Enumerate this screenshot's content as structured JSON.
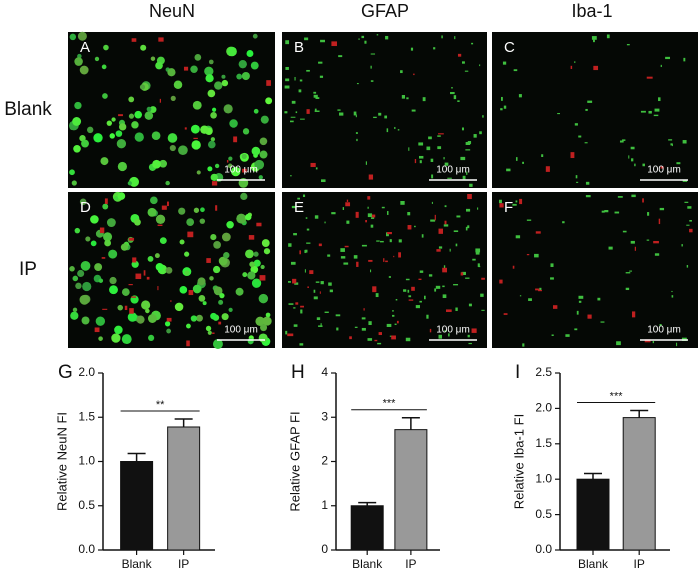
{
  "column_headers": [
    "NeuN",
    "GFAP",
    "Iba-1"
  ],
  "row_labels": [
    "Blank",
    "IP"
  ],
  "panels": [
    {
      "letter": "A",
      "scale_bar": "100 μm"
    },
    {
      "letter": "B",
      "scale_bar": "100 μm"
    },
    {
      "letter": "C",
      "scale_bar": "100 μm"
    },
    {
      "letter": "D",
      "scale_bar": "100 μm"
    },
    {
      "letter": "E",
      "scale_bar": "100 μm"
    },
    {
      "letter": "F",
      "scale_bar": "100 μm"
    }
  ],
  "chart_data": [
    {
      "type": "bar",
      "panel_label": "G",
      "ylabel": "Relative NeuN FI",
      "categories": [
        "Blank",
        "IP"
      ],
      "values": [
        1.0,
        1.39
      ],
      "errors": [
        0.09,
        0.09
      ],
      "colors": [
        "#111111",
        "#999999"
      ],
      "significance": "**",
      "ylim": [
        0,
        2
      ],
      "yticks": [
        {
          "value": 0,
          "label": "0.0"
        },
        {
          "value": 0.5,
          "label": "0.5"
        },
        {
          "value": 1,
          "label": "1.0"
        },
        {
          "value": 1.5,
          "label": "1.5"
        },
        {
          "value": 2,
          "label": "2.0"
        }
      ]
    },
    {
      "type": "bar",
      "panel_label": "H",
      "ylabel": "Relative GFAP FI",
      "categories": [
        "Blank",
        "IP"
      ],
      "values": [
        1.0,
        2.72
      ],
      "errors": [
        0.07,
        0.27
      ],
      "colors": [
        "#111111",
        "#999999"
      ],
      "significance": "***",
      "ylim": [
        0,
        4
      ],
      "yticks": [
        0,
        1,
        2,
        3,
        4
      ]
    },
    {
      "type": "bar",
      "panel_label": "I",
      "ylabel": "Relative Iba-1 FI",
      "categories": [
        "Blank",
        "IP"
      ],
      "values": [
        1.0,
        1.87
      ],
      "errors": [
        0.08,
        0.1
      ],
      "colors": [
        "#111111",
        "#999999"
      ],
      "significance": "***",
      "ylim": [
        0,
        2.5
      ],
      "yticks": [
        {
          "value": 0,
          "label": "0.0"
        },
        {
          "value": 0.5,
          "label": "0.5"
        },
        {
          "value": 1,
          "label": "1.0"
        },
        {
          "value": 1.5,
          "label": "1.5"
        },
        {
          "value": 2,
          "label": "2.0"
        },
        {
          "value": 2.5,
          "label": "2.5"
        }
      ]
    }
  ]
}
